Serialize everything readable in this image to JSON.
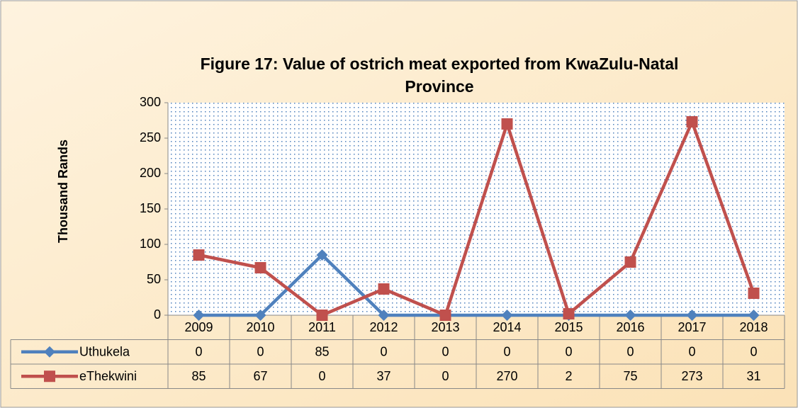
{
  "chart_data": {
    "type": "line",
    "title": "Figure 17: Value of ostrich meat exported from KwaZulu-Natal Province",
    "y_label": "Thousand Rands",
    "categories": [
      "2009",
      "2010",
      "2011",
      "2012",
      "2013",
      "2014",
      "2015",
      "2016",
      "2017",
      "2018"
    ],
    "series": [
      {
        "name": "Uthukela",
        "color": "#4f81bd",
        "marker": "diamond",
        "values": [
          0,
          0,
          85,
          0,
          0,
          0,
          0,
          0,
          0,
          0
        ]
      },
      {
        "name": "eThekwini",
        "color": "#c0504d",
        "marker": "square",
        "values": [
          85,
          67,
          0,
          37,
          0,
          270,
          2,
          75,
          273,
          31
        ]
      }
    ],
    "ylim": [
      0,
      300
    ],
    "yticks": [
      0,
      50,
      100,
      150,
      200,
      250,
      300
    ],
    "data_table": true
  }
}
